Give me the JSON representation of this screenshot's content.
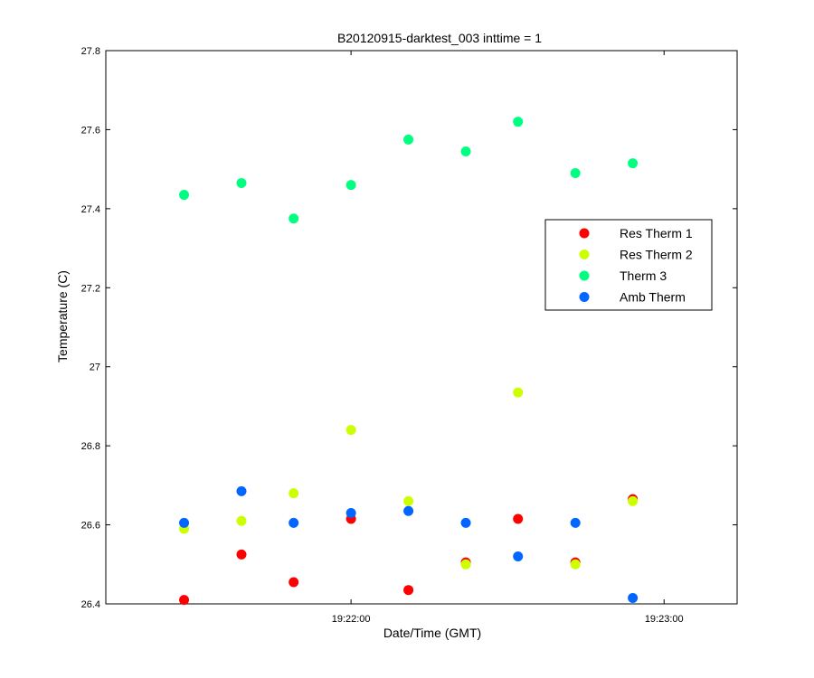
{
  "chart_data": {
    "type": "scatter",
    "title": "B20120915-darktest_003 inttime = 1",
    "xlabel": "Date/Time (GMT)",
    "ylabel": "Temperature (C)",
    "xlim": [
      "19:21:13",
      "19:23:14"
    ],
    "ylim": [
      26.4,
      27.8
    ],
    "x_ticks": [
      "19:22:00",
      "19:23:00"
    ],
    "y_ticks": [
      "26.4",
      "26.6",
      "26.8",
      "27",
      "27.2",
      "27.4",
      "27.6",
      "27.8"
    ],
    "legend_position": "upper-right",
    "x": [
      "19:21:28",
      "19:21:39",
      "19:21:49",
      "19:22:00",
      "19:22:11",
      "19:22:22",
      "19:22:32",
      "19:22:43",
      "19:22:54"
    ],
    "series": [
      {
        "name": "Res Therm 1",
        "color": "#ff0000",
        "values": [
          26.41,
          26.525,
          26.455,
          26.615,
          26.435,
          26.505,
          26.615,
          26.505,
          26.665
        ]
      },
      {
        "name": "Res Therm 2",
        "color": "#ccff00",
        "values": [
          26.59,
          26.61,
          26.68,
          26.84,
          26.66,
          26.5,
          26.935,
          26.5,
          26.66
        ]
      },
      {
        "name": "Therm 3",
        "color": "#00ff80",
        "values": [
          27.435,
          27.465,
          27.375,
          27.46,
          27.575,
          27.545,
          27.62,
          27.49,
          27.515
        ]
      },
      {
        "name": "Amb Therm",
        "color": "#0066ff",
        "values": [
          26.605,
          26.685,
          26.605,
          26.63,
          26.635,
          26.605,
          26.52,
          26.605,
          26.415
        ]
      }
    ]
  }
}
